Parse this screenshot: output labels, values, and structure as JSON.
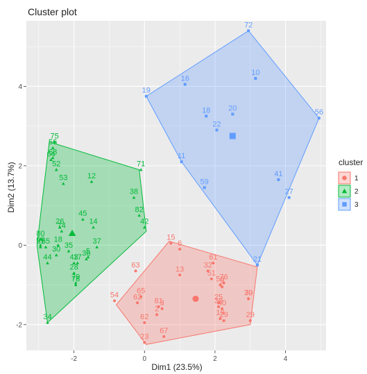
{
  "chart_data": {
    "type": "scatter",
    "title": "Cluster plot",
    "xlabel": "Dim1 (23.5%)",
    "ylabel": "Dim2 (13.7%)",
    "xlim": [
      -3.35,
      5.15
    ],
    "ylim": [
      -2.65,
      5.65
    ],
    "xticks": [
      -2,
      0,
      2,
      4
    ],
    "yticks": [
      -2,
      0,
      2,
      4
    ],
    "grid": true,
    "legend_position": "right",
    "legend_title": "cluster",
    "series": [
      {
        "name": "1",
        "color": "#F8766D",
        "marker": "circle",
        "hull": [
          [
            -0.8,
            -1.5
          ],
          [
            0.05,
            -2.5
          ],
          [
            3.0,
            -2.0
          ],
          [
            3.2,
            -0.55
          ],
          [
            0.7,
            0.1
          ]
        ],
        "centroid": [
          1.45,
          -1.35
        ],
        "points": [
          {
            "label": "15",
            "x": 0.75,
            "y": 0.05
          },
          {
            "label": "6",
            "x": 1.0,
            "y": -0.1
          },
          {
            "label": "61",
            "x": 1.95,
            "y": -0.45
          },
          {
            "label": "32",
            "x": 1.8,
            "y": -0.65
          },
          {
            "label": "63",
            "x": -0.25,
            "y": -0.65
          },
          {
            "label": "13",
            "x": 1.0,
            "y": -0.75
          },
          {
            "label": "51",
            "x": 1.9,
            "y": -0.85
          },
          {
            "label": "76",
            "x": 2.25,
            "y": -0.95
          },
          {
            "label": "50",
            "x": 2.15,
            "y": -1.0
          },
          {
            "label": "9",
            "x": 2.2,
            "y": -1.05
          },
          {
            "label": "54",
            "x": -0.85,
            "y": -1.4
          },
          {
            "label": "65",
            "x": -0.1,
            "y": -1.3
          },
          {
            "label": "62",
            "x": -0.2,
            "y": -1.45
          },
          {
            "label": "39",
            "x": 2.95,
            "y": -1.35
          },
          {
            "label": "70",
            "x": 2.95,
            "y": -1.35
          },
          {
            "label": "25",
            "x": 2.1,
            "y": -1.45
          },
          {
            "label": "30",
            "x": 2.1,
            "y": -1.55
          },
          {
            "label": "40",
            "x": 2.2,
            "y": -1.6
          },
          {
            "label": "81",
            "x": 0.4,
            "y": -1.55
          },
          {
            "label": "3",
            "x": 0.5,
            "y": -1.6
          },
          {
            "label": "2",
            "x": 0.35,
            "y": -1.75
          },
          {
            "label": "19",
            "x": 2.15,
            "y": -1.85
          },
          {
            "label": "29",
            "x": 2.25,
            "y": -1.9
          },
          {
            "label": "29",
            "x": 3.0,
            "y": -1.9
          },
          {
            "label": "62",
            "x": 0.0,
            "y": -1.95
          },
          {
            "label": "67",
            "x": 0.55,
            "y": -2.3
          },
          {
            "label": "23",
            "x": 0.0,
            "y": -2.45
          }
        ]
      },
      {
        "name": "2",
        "color": "#00BA38",
        "marker": "triangle",
        "hull": [
          [
            -2.75,
            -1.95
          ],
          [
            -3.05,
            0.0
          ],
          [
            -2.7,
            2.6
          ],
          [
            -0.15,
            1.9
          ],
          [
            0.05,
            0.35
          ]
        ],
        "centroid": [
          -2.05,
          0.3
        ],
        "points": [
          {
            "label": "75",
            "x": -2.55,
            "y": 2.6
          },
          {
            "label": "56",
            "x": -2.6,
            "y": 2.45
          },
          {
            "label": "68",
            "x": -2.6,
            "y": 2.2
          },
          {
            "label": "64",
            "x": -2.65,
            "y": 2.15
          },
          {
            "label": "52",
            "x": -2.5,
            "y": 1.9
          },
          {
            "label": "71",
            "x": -0.1,
            "y": 1.9
          },
          {
            "label": "12",
            "x": -1.5,
            "y": 1.6
          },
          {
            "label": "53",
            "x": -2.3,
            "y": 1.55
          },
          {
            "label": "38",
            "x": -0.3,
            "y": 1.2
          },
          {
            "label": "45",
            "x": -1.75,
            "y": 0.65
          },
          {
            "label": "82",
            "x": -0.15,
            "y": 0.75
          },
          {
            "label": "14",
            "x": -1.45,
            "y": 0.45
          },
          {
            "label": "26",
            "x": -2.4,
            "y": 0.45
          },
          {
            "label": "42",
            "x": 0.0,
            "y": 0.45
          },
          {
            "label": "74",
            "x": -2.35,
            "y": 0.35
          },
          {
            "label": "37",
            "x": -1.35,
            "y": -0.05
          },
          {
            "label": "80",
            "x": -2.95,
            "y": 0.15
          },
          {
            "label": "31",
            "x": -2.95,
            "y": -0.05
          },
          {
            "label": "18",
            "x": -2.45,
            "y": 0.0
          },
          {
            "label": "35",
            "x": -2.15,
            "y": -0.15
          },
          {
            "label": "30",
            "x": -2.5,
            "y": -0.25
          },
          {
            "label": "66",
            "x": -2.95,
            "y": 0.0
          },
          {
            "label": "55",
            "x": -2.8,
            "y": -0.05
          },
          {
            "label": "36",
            "x": -1.65,
            "y": -0.35
          },
          {
            "label": "5",
            "x": -1.6,
            "y": -0.3
          },
          {
            "label": "44",
            "x": -2.75,
            "y": -0.45
          },
          {
            "label": "17",
            "x": -1.9,
            "y": -0.45
          },
          {
            "label": "43",
            "x": -2.0,
            "y": -0.45
          },
          {
            "label": "28",
            "x": -2.0,
            "y": -0.7
          },
          {
            "label": "79",
            "x": -1.95,
            "y": -0.95
          },
          {
            "label": "78",
            "x": -1.95,
            "y": -1.0
          },
          {
            "label": "34",
            "x": -2.75,
            "y": -1.95
          }
        ]
      },
      {
        "name": "3",
        "color": "#619CFF",
        "marker": "square",
        "hull": [
          [
            0.05,
            3.75
          ],
          [
            2.95,
            5.4
          ],
          [
            4.95,
            3.2
          ],
          [
            3.2,
            -0.5
          ],
          [
            1.05,
            2.1
          ]
        ],
        "centroid": [
          2.5,
          2.75
        ],
        "points": [
          {
            "label": "72",
            "x": 2.95,
            "y": 5.4
          },
          {
            "label": "10",
            "x": 3.15,
            "y": 4.2
          },
          {
            "label": "16",
            "x": 1.15,
            "y": 4.05
          },
          {
            "label": "19",
            "x": 0.05,
            "y": 3.75
          },
          {
            "label": "20",
            "x": 2.5,
            "y": 3.3
          },
          {
            "label": "56",
            "x": 4.95,
            "y": 3.2
          },
          {
            "label": "18",
            "x": 1.75,
            "y": 3.25
          },
          {
            "label": "22",
            "x": 2.05,
            "y": 2.9
          },
          {
            "label": "11",
            "x": 1.05,
            "y": 2.1
          },
          {
            "label": "41",
            "x": 3.8,
            "y": 1.65
          },
          {
            "label": "59",
            "x": 1.7,
            "y": 1.45
          },
          {
            "label": "27",
            "x": 4.1,
            "y": 1.2
          },
          {
            "label": "21",
            "x": 3.2,
            "y": -0.5
          }
        ]
      }
    ]
  }
}
